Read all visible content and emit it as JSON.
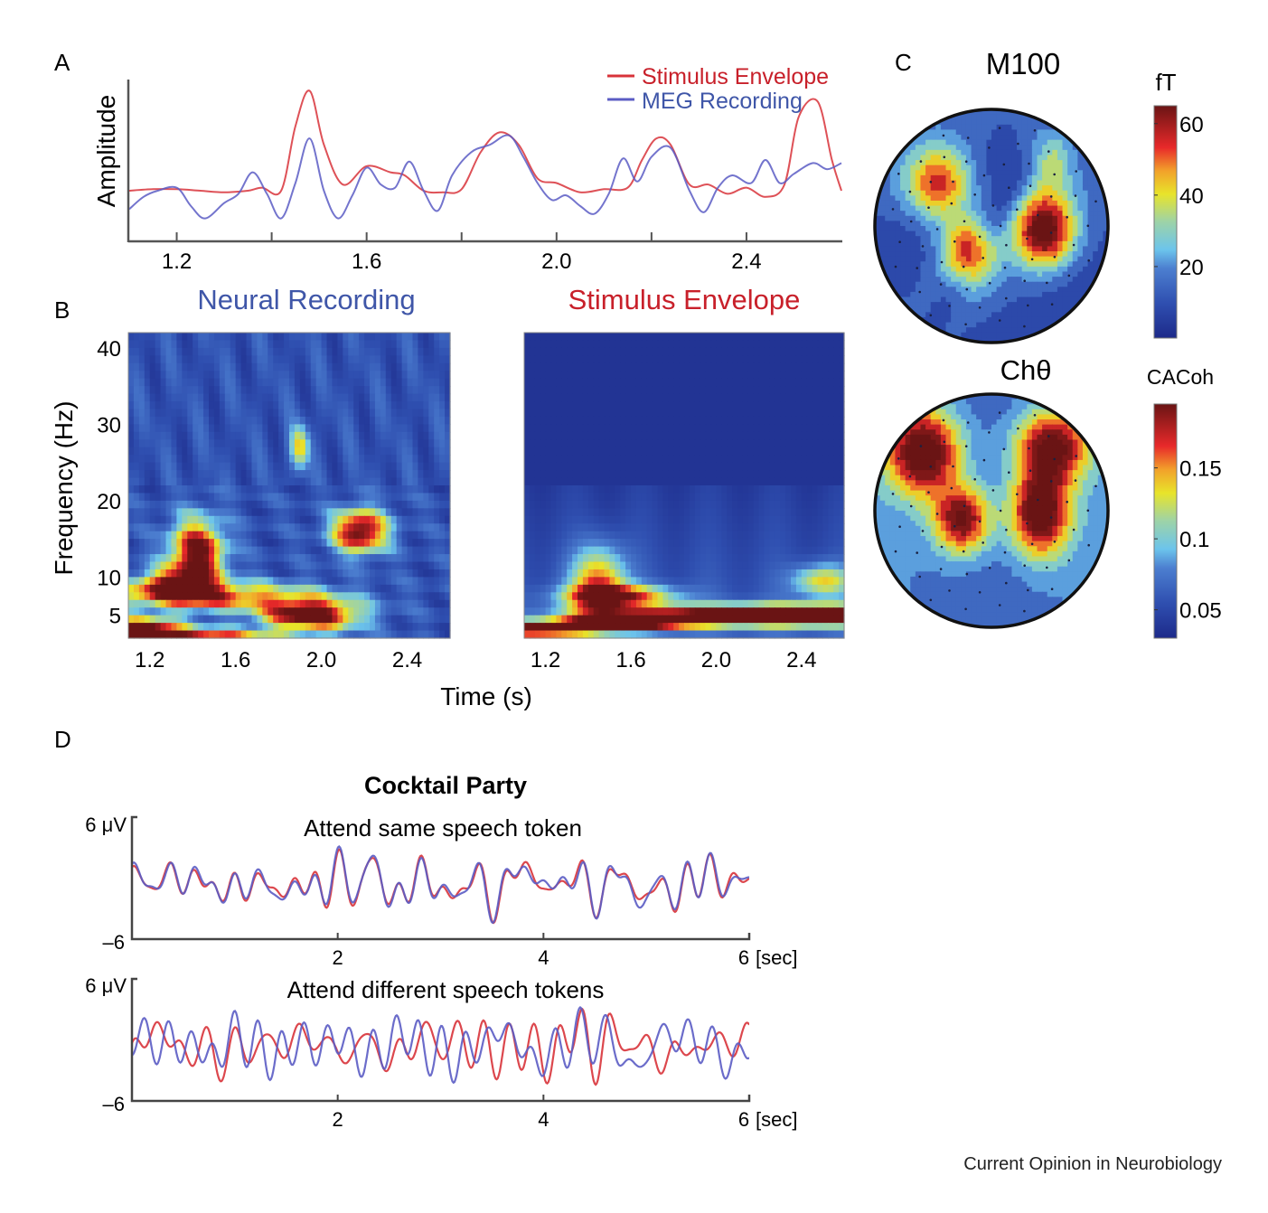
{
  "figure": {
    "source": "Current Opinion in Neurobiology",
    "colors": {
      "red": "#d8333a",
      "blue": "#5b5cc4",
      "red_title": "#c8202a",
      "blue_title": "#3f56a8"
    }
  },
  "chart_data": [
    {
      "panel": "A",
      "type": "line",
      "title": "",
      "xlabel": "",
      "ylabel": "Amplitude",
      "xlim": [
        1.1,
        2.6
      ],
      "ylim": [
        0,
        1
      ],
      "xticks": [
        "1.2",
        "1.6",
        "2.0",
        "2.4"
      ],
      "xtick_values": [
        1.2,
        1.6,
        2.0,
        2.4
      ],
      "minor_xticks": [
        1.4,
        1.8,
        2.2
      ],
      "legend": {
        "placement": "top-right",
        "entries": [
          "Stimulus Envelope",
          "MEG Recording"
        ]
      },
      "series": [
        {
          "name": "Stimulus Envelope",
          "color": "#d8333a",
          "x": [
            1.1,
            1.15,
            1.2,
            1.25,
            1.3,
            1.35,
            1.38,
            1.42,
            1.45,
            1.48,
            1.51,
            1.55,
            1.6,
            1.65,
            1.68,
            1.72,
            1.76,
            1.8,
            1.84,
            1.88,
            1.92,
            1.96,
            2.0,
            2.05,
            2.1,
            2.15,
            2.18,
            2.21,
            2.24,
            2.28,
            2.32,
            2.36,
            2.4,
            2.44,
            2.48,
            2.51,
            2.55,
            2.58,
            2.6
          ],
          "y": [
            0.3,
            0.31,
            0.31,
            0.3,
            0.29,
            0.3,
            0.32,
            0.3,
            0.72,
            0.95,
            0.6,
            0.34,
            0.46,
            0.42,
            0.4,
            0.3,
            0.29,
            0.31,
            0.55,
            0.68,
            0.6,
            0.38,
            0.35,
            0.29,
            0.31,
            0.32,
            0.5,
            0.64,
            0.6,
            0.34,
            0.34,
            0.28,
            0.32,
            0.26,
            0.34,
            0.78,
            0.88,
            0.5,
            0.3
          ]
        },
        {
          "name": "MEG Recording",
          "color": "#5b5cc4",
          "x": [
            1.1,
            1.13,
            1.16,
            1.2,
            1.23,
            1.26,
            1.3,
            1.33,
            1.36,
            1.39,
            1.42,
            1.45,
            1.48,
            1.51,
            1.54,
            1.57,
            1.6,
            1.63,
            1.66,
            1.69,
            1.72,
            1.75,
            1.78,
            1.82,
            1.86,
            1.9,
            1.93,
            1.96,
            1.99,
            2.02,
            2.05,
            2.08,
            2.11,
            2.14,
            2.17,
            2.2,
            2.24,
            2.28,
            2.31,
            2.34,
            2.37,
            2.41,
            2.44,
            2.47,
            2.5,
            2.54,
            2.57,
            2.6
          ],
          "y": [
            0.18,
            0.26,
            0.3,
            0.32,
            0.2,
            0.12,
            0.22,
            0.28,
            0.42,
            0.28,
            0.12,
            0.35,
            0.64,
            0.3,
            0.12,
            0.27,
            0.45,
            0.34,
            0.32,
            0.49,
            0.3,
            0.17,
            0.4,
            0.55,
            0.6,
            0.66,
            0.52,
            0.35,
            0.24,
            0.27,
            0.2,
            0.15,
            0.28,
            0.51,
            0.36,
            0.52,
            0.58,
            0.3,
            0.16,
            0.32,
            0.4,
            0.35,
            0.5,
            0.35,
            0.41,
            0.48,
            0.44,
            0.48
          ]
        }
      ]
    },
    {
      "panel": "B",
      "type": "heatmap",
      "title": "Neural Recording",
      "xlabel": "Time (s)",
      "ylabel": "Frequency (Hz)",
      "xlim": [
        1.1,
        2.6
      ],
      "ylim": [
        2,
        42
      ],
      "xticks": [
        "1.2",
        "1.6",
        "2.0",
        "2.4"
      ],
      "xtick_values": [
        1.2,
        1.6,
        2.0,
        2.4
      ],
      "yticks": [
        "5",
        "10",
        "20",
        "30",
        "40"
      ],
      "ytick_values": [
        5,
        10,
        20,
        30,
        40
      ],
      "hotspots": [
        {
          "t": 1.42,
          "f": 13,
          "intensity": 0.9,
          "st": 0.09,
          "sf": 3.2
        },
        {
          "t": 2.18,
          "f": 16,
          "intensity": 0.92,
          "st": 0.09,
          "sf": 2.0
        },
        {
          "t": 1.95,
          "f": 5,
          "intensity": 0.95,
          "st": 0.16,
          "sf": 1.4
        },
        {
          "t": 1.5,
          "f": 7.5,
          "intensity": 0.62,
          "st": 0.35,
          "sf": 1.3
        },
        {
          "t": 1.15,
          "f": 3.5,
          "intensity": 0.9,
          "st": 0.12,
          "sf": 0.8
        },
        {
          "t": 1.35,
          "f": 2.5,
          "intensity": 0.72,
          "st": 0.3,
          "sf": 0.6
        },
        {
          "t": 1.9,
          "f": 27,
          "intensity": 0.5,
          "st": 0.03,
          "sf": 2.0
        },
        {
          "t": 1.3,
          "f": 9,
          "intensity": 0.6,
          "st": 0.12,
          "sf": 1.5
        }
      ]
    },
    {
      "panel": "B",
      "type": "heatmap",
      "title": "Stimulus Envelope",
      "xlabel": "Time (s)",
      "ylabel": "",
      "xlim": [
        1.1,
        2.6
      ],
      "ylim": [
        2,
        42
      ],
      "xticks": [
        "1.2",
        "1.6",
        "2.0",
        "2.4"
      ],
      "xtick_values": [
        1.2,
        1.6,
        2.0,
        2.4
      ],
      "hotspots": [
        {
          "t": 1.45,
          "f": 9,
          "intensity": 0.65,
          "st": 0.09,
          "sf": 3.5
        },
        {
          "t": 1.55,
          "f": 7.5,
          "intensity": 0.7,
          "st": 0.18,
          "sf": 1.0
        },
        {
          "t": 2.45,
          "f": 5,
          "intensity": 0.95,
          "st": 0.3,
          "sf": 0.9
        },
        {
          "t": 1.95,
          "f": 5,
          "intensity": 0.72,
          "st": 0.4,
          "sf": 0.9
        },
        {
          "t": 1.6,
          "f": 4,
          "intensity": 0.95,
          "st": 0.2,
          "sf": 0.7
        },
        {
          "t": 1.15,
          "f": 3.2,
          "intensity": 1.0,
          "st": 0.18,
          "sf": 0.7
        },
        {
          "t": 2.5,
          "f": 9.5,
          "intensity": 0.5,
          "st": 0.1,
          "sf": 1.5
        }
      ]
    },
    {
      "panel": "C",
      "type": "heatmap",
      "title": "M100",
      "colorbar_label": "fT",
      "colorbar_ticks": [
        "60",
        "40",
        "20"
      ],
      "colorbar_tick_values": [
        60,
        40,
        20
      ],
      "crange": [
        0,
        65
      ],
      "sources": [
        {
          "x": -0.45,
          "y": -0.36,
          "value": 48,
          "sx": 0.2,
          "sy": 0.22
        },
        {
          "x": -0.2,
          "y": 0.22,
          "value": 50,
          "sx": 0.16,
          "sy": 0.2
        },
        {
          "x": 0.45,
          "y": 0.04,
          "value": 62,
          "sx": 0.18,
          "sy": 0.22
        },
        {
          "x": 0.5,
          "y": -0.6,
          "value": 28,
          "sx": 0.15,
          "sy": 0.25
        }
      ]
    },
    {
      "panel": "C",
      "type": "heatmap",
      "title": "Chθ",
      "colorbar_label": "CACoh",
      "colorbar_ticks": [
        "0.15",
        "0.1",
        "0.05"
      ],
      "colorbar_tick_values": [
        0.15,
        0.1,
        0.05
      ],
      "crange": [
        0.03,
        0.195
      ],
      "sources": [
        {
          "x": -0.58,
          "y": -0.5,
          "value": 0.19,
          "sx": 0.22,
          "sy": 0.26
        },
        {
          "x": 0.52,
          "y": -0.55,
          "value": 0.17,
          "sx": 0.22,
          "sy": 0.22
        },
        {
          "x": -0.25,
          "y": 0.08,
          "value": 0.17,
          "sx": 0.17,
          "sy": 0.2
        },
        {
          "x": 0.42,
          "y": 0.02,
          "value": 0.19,
          "sx": 0.18,
          "sy": 0.26
        }
      ]
    },
    {
      "panel": "D",
      "type": "line",
      "title": "Cocktail Party",
      "subtitle": "Attend same speech token",
      "ylabel_top": "6 μV",
      "ylabel_bottom": "–6",
      "xunit": "[sec]",
      "xlim": [
        0,
        6
      ],
      "ylim": [
        -6,
        6
      ],
      "xticks": [
        "2",
        "4",
        "6"
      ],
      "xtick_values": [
        2,
        4,
        6
      ],
      "series": [
        {
          "name": "red",
          "color": "#d8333a",
          "seed": 3,
          "corr": 0.85
        },
        {
          "name": "blue",
          "color": "#5b5cc4",
          "seed": 7,
          "corr": 0.85
        }
      ]
    },
    {
      "panel": "D",
      "type": "line",
      "title": "",
      "subtitle": "Attend different speech tokens",
      "ylabel_top": "6 μV",
      "ylabel_bottom": "–6",
      "xunit": "[sec]",
      "xlim": [
        0,
        6
      ],
      "ylim": [
        -6,
        6
      ],
      "xticks": [
        "2",
        "4",
        "6"
      ],
      "xtick_values": [
        2,
        4,
        6
      ],
      "series": [
        {
          "name": "red",
          "color": "#d8333a",
          "seed": 11,
          "corr": 0.2
        },
        {
          "name": "blue",
          "color": "#5b5cc4",
          "seed": 5,
          "corr": 0.2
        }
      ]
    }
  ],
  "panel_labels": {
    "a": "A",
    "b": "B",
    "c": "C",
    "d": "D"
  }
}
